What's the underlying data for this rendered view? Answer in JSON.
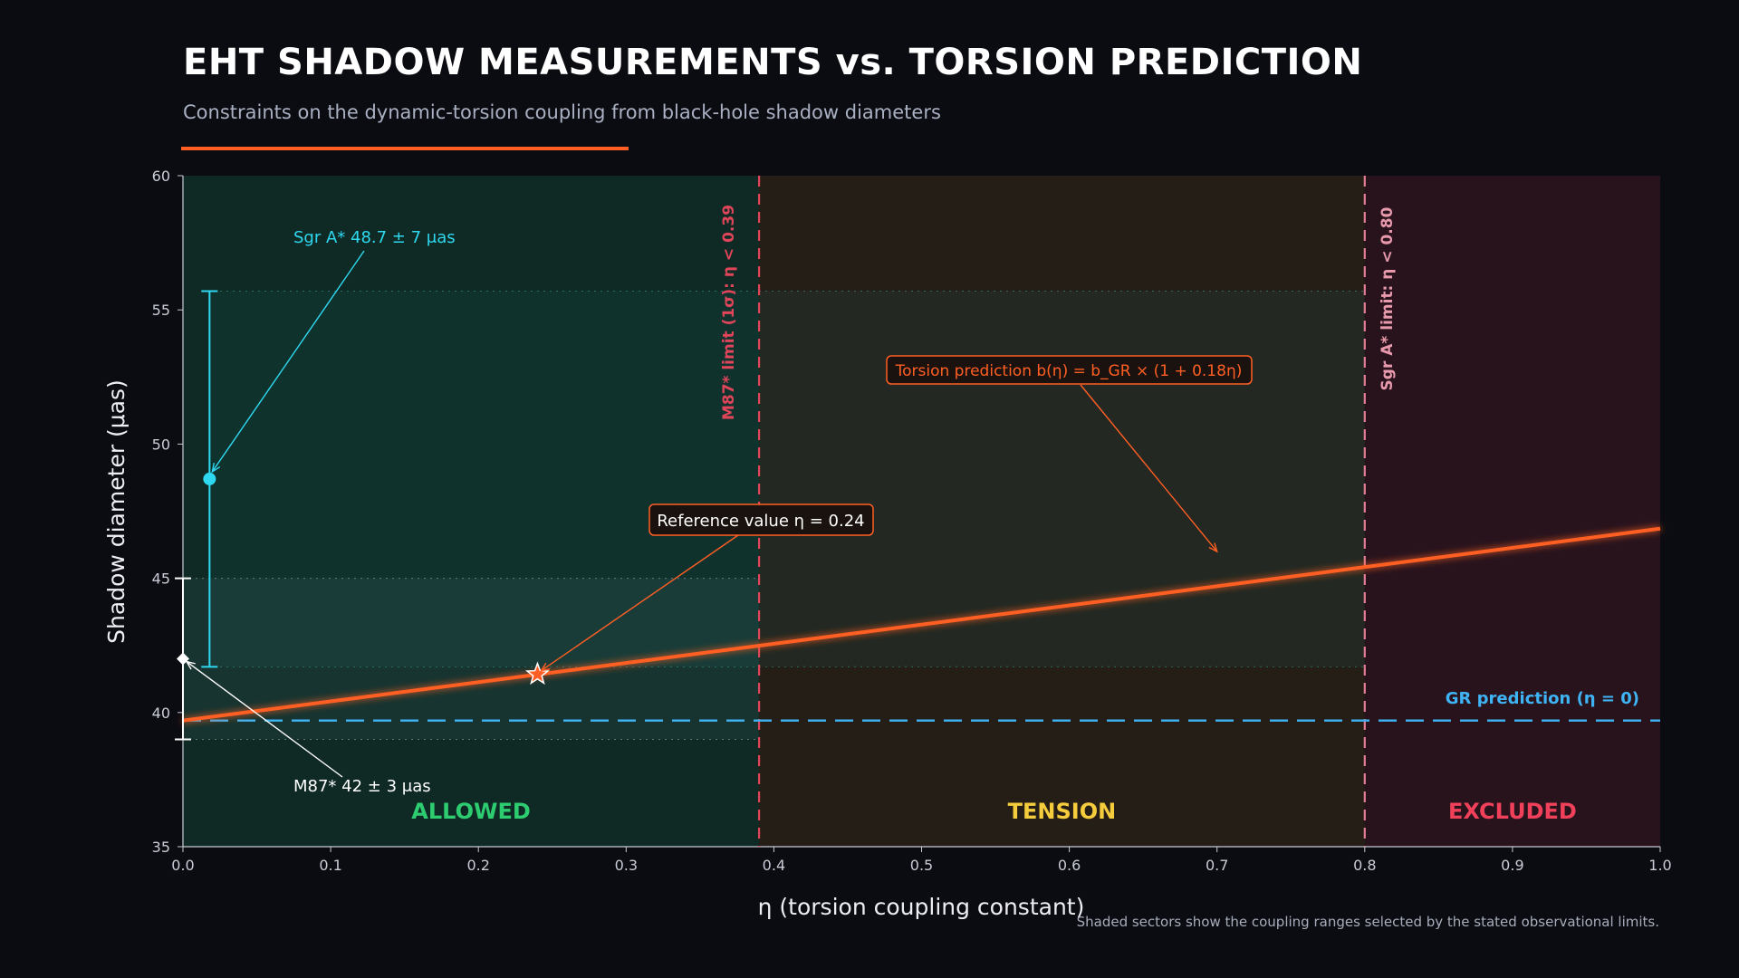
{
  "header": {
    "title": "EHT SHADOW MEASUREMENTS vs. TORSION PREDICTION",
    "subtitle": "Constraints on the dynamic-torsion coupling from black-hole shadow diameters"
  },
  "footnote": "Shaded sectors show the coupling ranges selected by the stated observational limits.",
  "colors": {
    "accent": "#ff5f24",
    "allowed": "#2ecc71",
    "tension": "#f5cc3c",
    "excluded": "#f0405a",
    "sgra": "#2ed8f0",
    "gr": "#3fb4f5",
    "limit_line": "#e0455a"
  },
  "chart_data": {
    "type": "line",
    "title": "EHT SHADOW MEASUREMENTS vs. TORSION PREDICTION",
    "xlabel": "η  (torsion coupling constant)",
    "ylabel": "Shadow diameter  (μas)",
    "xlim": [
      0,
      1
    ],
    "ylim": [
      35,
      60
    ],
    "xticks": [
      0.0,
      0.1,
      0.2,
      0.3,
      0.4,
      0.5,
      0.6,
      0.7,
      0.8,
      0.9,
      1.0
    ],
    "xtick_labels": [
      "0.0",
      "0.1",
      "0.2",
      "0.3",
      "0.4",
      "0.5",
      "0.6",
      "0.7",
      "0.8",
      "0.9",
      "1.0"
    ],
    "yticks": [
      35,
      40,
      45,
      50,
      55,
      60
    ],
    "ytick_labels": [
      "35",
      "40",
      "45",
      "50",
      "55",
      "60"
    ],
    "grid": false,
    "series": [
      {
        "name": "Torsion prediction",
        "x": [
          0.0,
          1.0
        ],
        "y": [
          39.7,
          46.85
        ]
      },
      {
        "name": "GR prediction",
        "x": [
          0.0,
          1.0
        ],
        "y": [
          39.7,
          39.7
        ]
      }
    ],
    "regions": [
      {
        "label": "ALLOWED",
        "x0": 0.0,
        "x1": 0.39
      },
      {
        "label": "TENSION",
        "x0": 0.39,
        "x1": 0.8
      },
      {
        "label": "EXCLUDED",
        "x0": 0.8,
        "x1": 1.0
      }
    ],
    "limits": [
      {
        "x": 0.39,
        "label": "M87* limit (1σ):  η < 0.39"
      },
      {
        "x": 0.8,
        "label": "Sgr A* limit:  η < 0.80"
      }
    ],
    "measurements": [
      {
        "name": "Sgr A*",
        "label": "Sgr A*  48.7 ± 7 μas",
        "x": 0.018,
        "y": 48.7,
        "err": 7
      },
      {
        "name": "M87*",
        "label": "M87*  42 ± 3 μas",
        "x": 0.0,
        "y": 42,
        "err": 3
      }
    ],
    "reference": {
      "x": 0.24,
      "y": 41.42,
      "label": "Reference value  η = 0.24"
    },
    "annotations": {
      "torsion": "Torsion prediction  b(η) = b_GR × (1 + 0.18η)",
      "gr": "GR prediction  (η = 0)"
    }
  }
}
